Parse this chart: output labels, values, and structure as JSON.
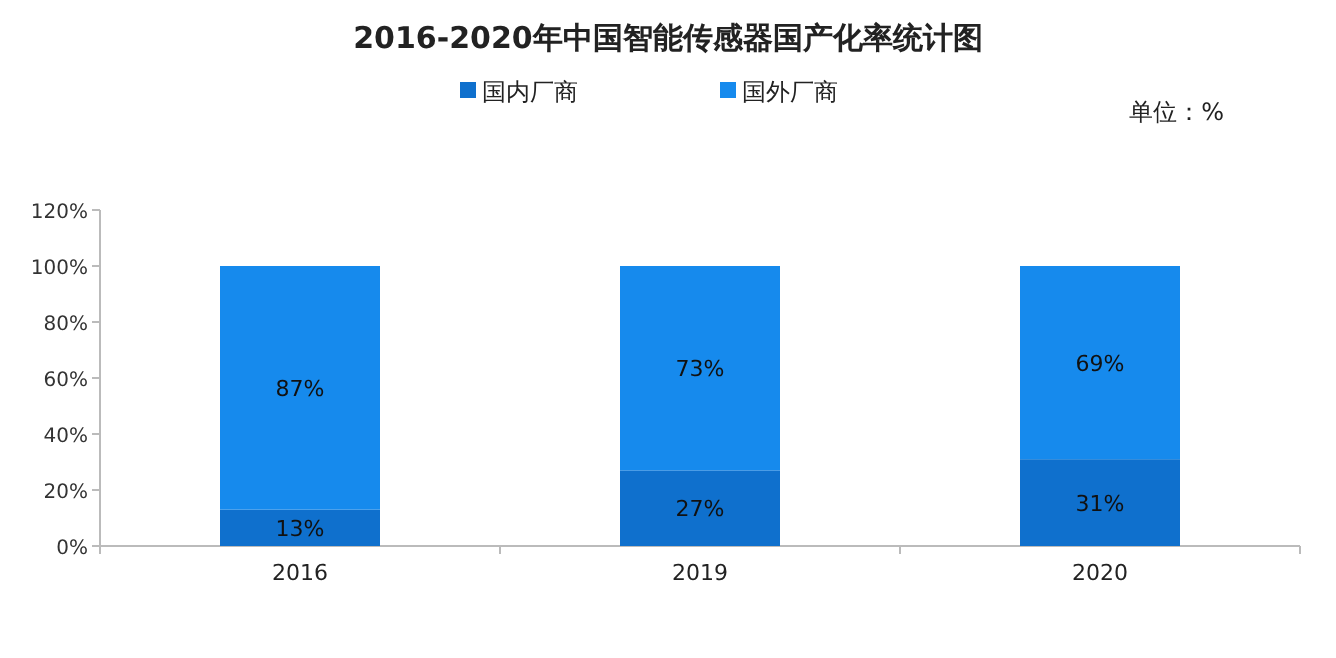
{
  "chart_data": {
    "type": "bar",
    "stacked": true,
    "title": "2016-2020年中国智能传感器国产化率统计图",
    "annotations": [
      "单位：%"
    ],
    "categories": [
      "2016",
      "2019",
      "2020"
    ],
    "series": [
      {
        "name": "国内厂商",
        "color": "#0f70cd",
        "values": [
          13,
          27,
          31
        ],
        "value_labels": [
          "13%",
          "27%",
          "31%"
        ]
      },
      {
        "name": "国外厂商",
        "color": "#168aed",
        "values": [
          87,
          73,
          69
        ],
        "value_labels": [
          "87%",
          "73%",
          "69%"
        ]
      }
    ],
    "ylim": [
      0,
      120
    ],
    "yticks": [
      {
        "value": 0,
        "label": "0%"
      },
      {
        "value": 20,
        "label": "20%"
      },
      {
        "value": 40,
        "label": "40%"
      },
      {
        "value": 60,
        "label": "60%"
      },
      {
        "value": 80,
        "label": "80%"
      },
      {
        "value": 100,
        "label": "100%"
      },
      {
        "value": 120,
        "label": "120%"
      }
    ],
    "grid": false,
    "legend": "top"
  }
}
